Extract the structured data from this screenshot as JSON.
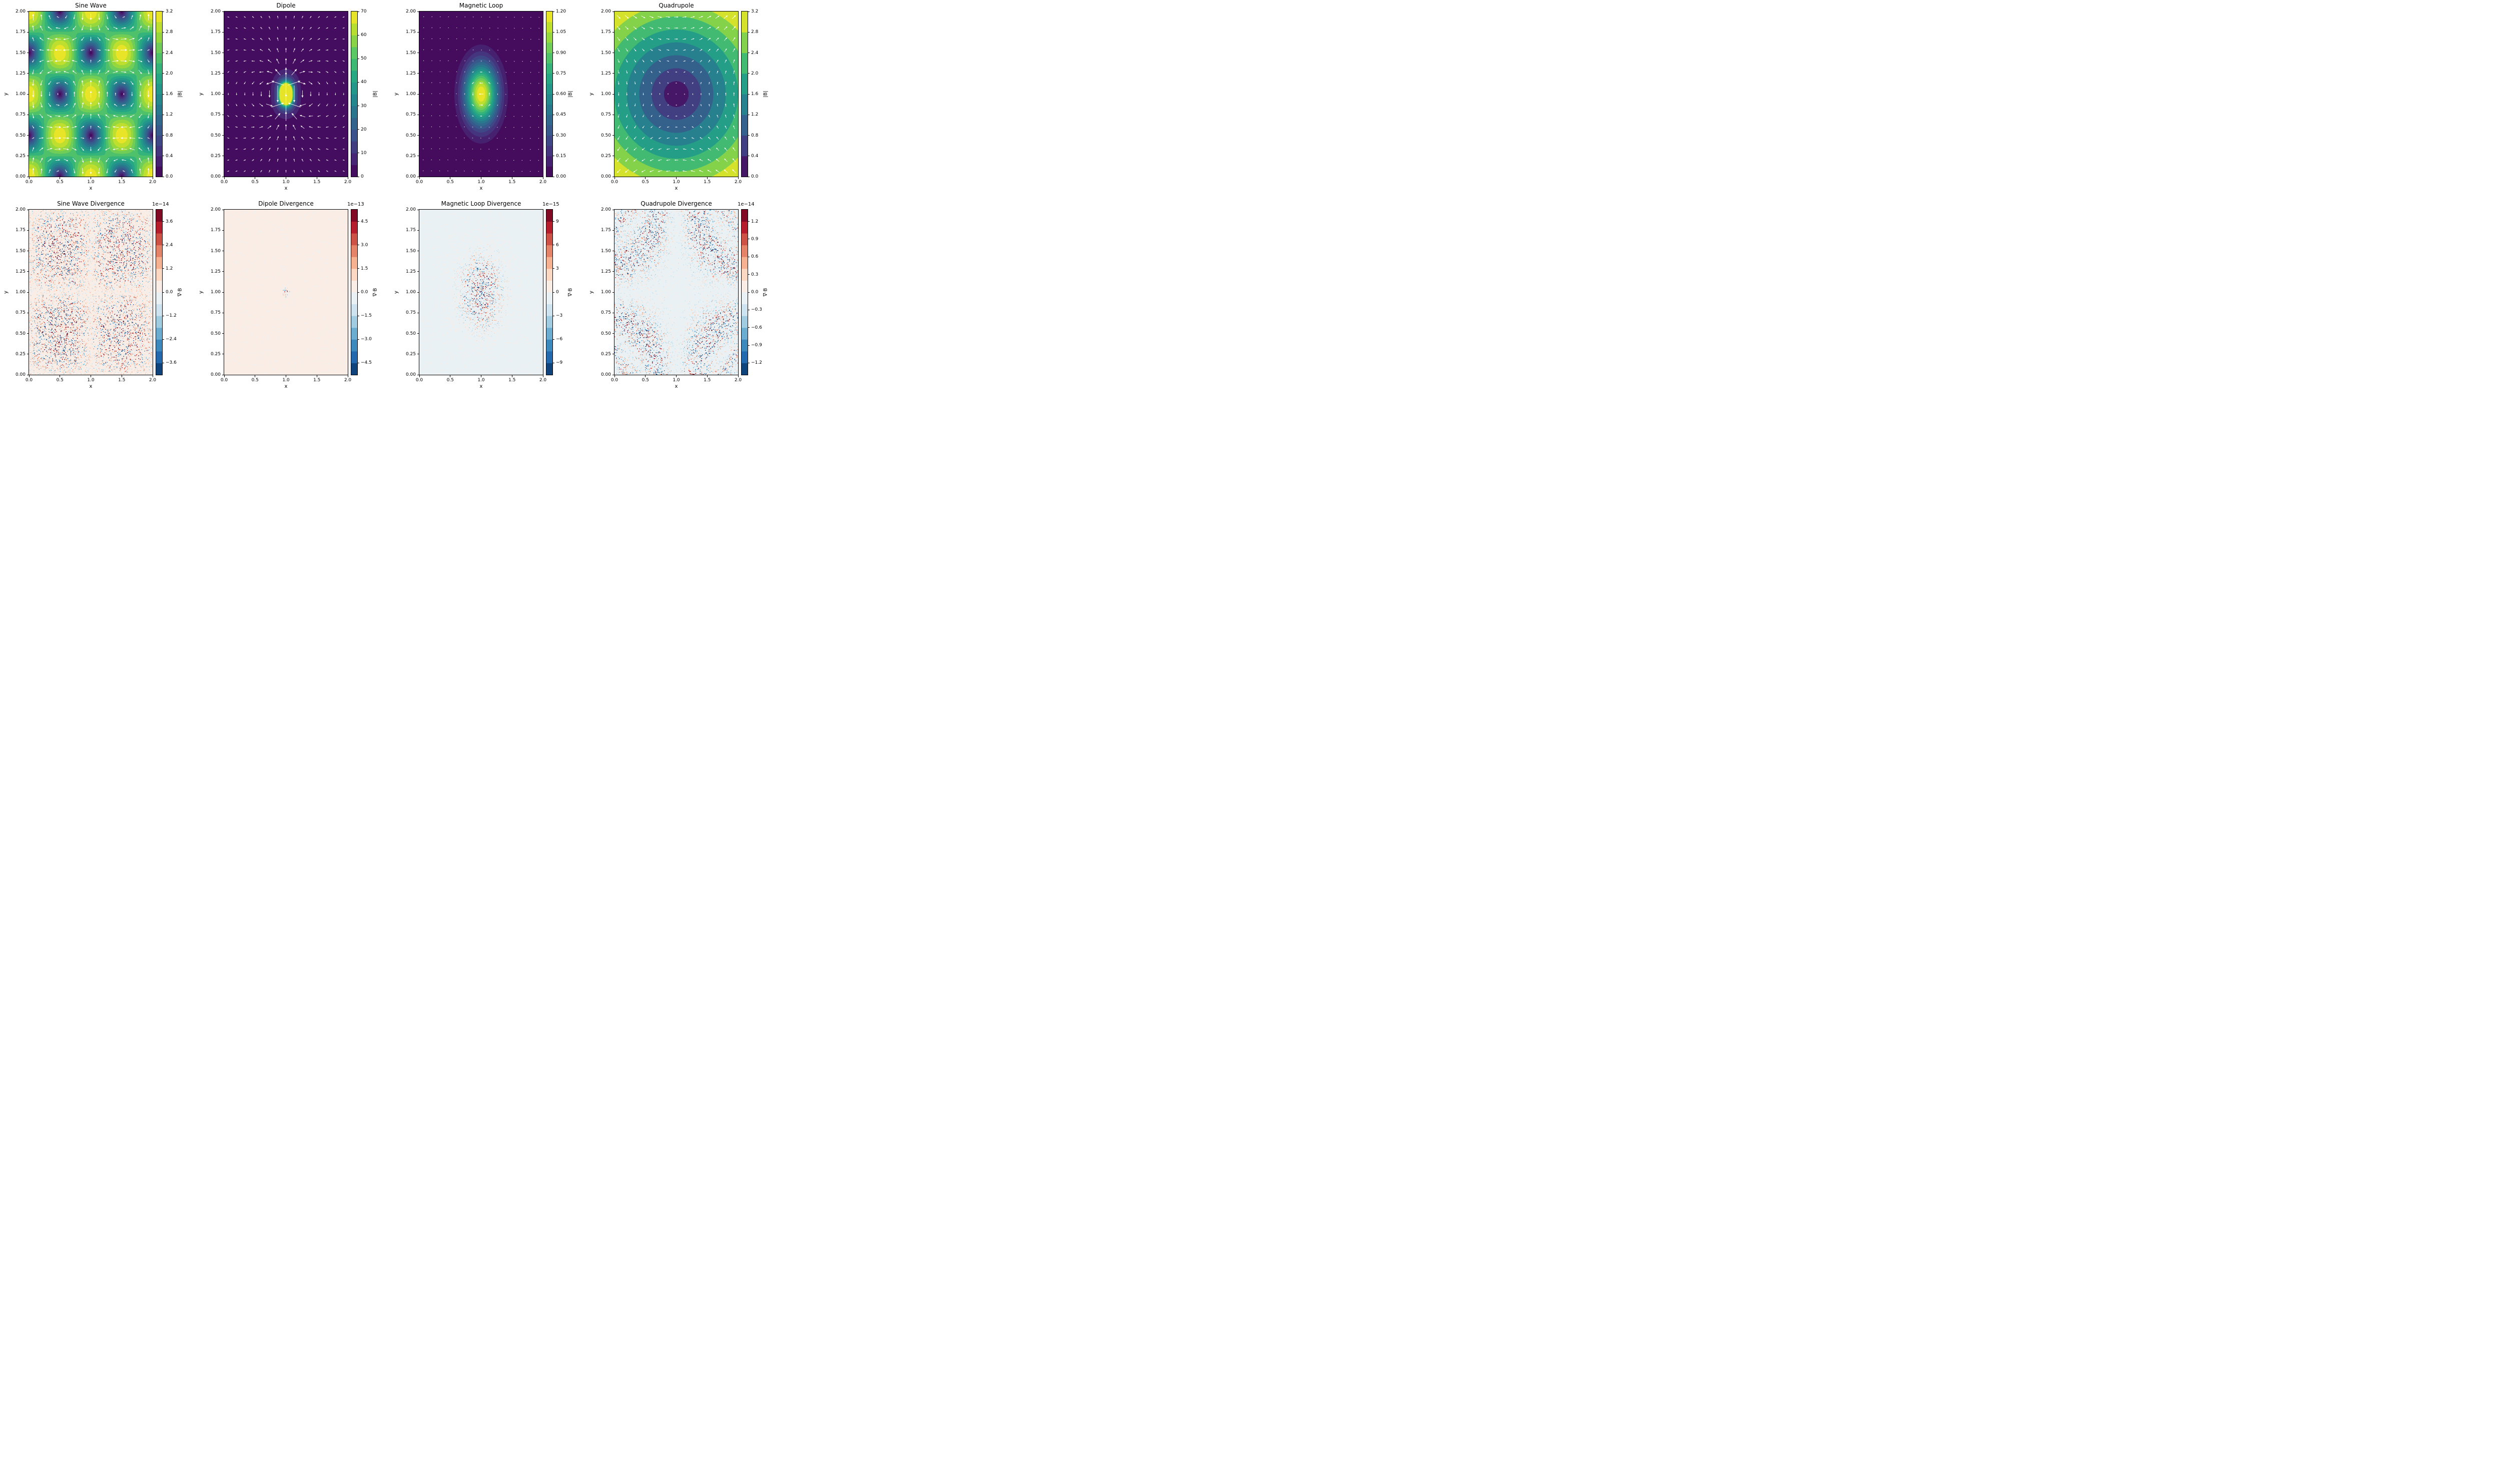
{
  "figure": {
    "background": "#ffffff",
    "text_color": "#000000",
    "arrow_color": "#ffffff"
  },
  "chart_data": {
    "type": "heatmap",
    "description": "2x4 grid of magnetic field magnitude contour maps with quiver arrows (top row, viridis) and their numerical divergence noise maps (bottom row, RdBu_r diverging)",
    "grid": {
      "rows": 2,
      "cols": 4
    },
    "axes": {
      "xlabel": "x",
      "ylabel": "y",
      "x_range": [
        0.0,
        2.0
      ],
      "y_range": [
        0.0,
        2.0
      ],
      "x_tick_values": [
        0.0,
        0.5,
        1.0,
        1.5,
        2.0
      ],
      "x_tick_labels": [
        "0.0",
        "0.5",
        "1.0",
        "1.5",
        "2.0"
      ],
      "y_tick_values": [
        0.0,
        0.25,
        0.5,
        0.75,
        1.0,
        1.25,
        1.5,
        1.75,
        2.0
      ],
      "y_tick_labels": [
        "0.00",
        "0.25",
        "0.50",
        "0.75",
        "1.00",
        "1.25",
        "1.50",
        "1.75",
        "2.00"
      ]
    },
    "colormaps": {
      "viridis": [
        [
          68,
          1,
          84
        ],
        [
          71,
          44,
          122
        ],
        [
          59,
          81,
          139
        ],
        [
          44,
          113,
          142
        ],
        [
          33,
          144,
          141
        ],
        [
          39,
          173,
          129
        ],
        [
          92,
          200,
          99
        ],
        [
          170,
          220,
          50
        ],
        [
          253,
          231,
          37
        ]
      ],
      "rdbu_r": [
        [
          5,
          48,
          97
        ],
        [
          33,
          102,
          172
        ],
        [
          67,
          147,
          195
        ],
        [
          146,
          197,
          222
        ],
        [
          209,
          229,
          240
        ],
        [
          247,
          247,
          247
        ],
        [
          253,
          219,
          199
        ],
        [
          244,
          165,
          130
        ],
        [
          214,
          96,
          77
        ],
        [
          178,
          24,
          43
        ],
        [
          103,
          0,
          31
        ]
      ]
    },
    "panels": [
      {
        "id": "sine-wave",
        "row": 0,
        "col": 0,
        "title": "Sine Wave",
        "kind": "field",
        "field": "sine",
        "colormap": "viridis",
        "vmin": 0,
        "vmax": 3.2,
        "bands": 16,
        "quiver": {
          "grid": 15,
          "base": 3,
          "mult": 11,
          "pow": 1,
          "clip": 3.2
        },
        "colorbar": {
          "label": "|B|",
          "tick_values": [
            0.0,
            0.4,
            0.8,
            1.2,
            1.6,
            2.0,
            2.4,
            2.8,
            3.2
          ],
          "tick_labels": [
            "0.0",
            "0.4",
            "0.8",
            "1.2",
            "1.6",
            "2.0",
            "2.4",
            "2.8",
            "3.2"
          ]
        }
      },
      {
        "id": "dipole",
        "row": 0,
        "col": 1,
        "title": "Dipole",
        "kind": "field",
        "field": "dipole",
        "colormap": "viridis",
        "vmin": 0,
        "vmax": 70,
        "bands": 14,
        "quiver": {
          "grid": 15,
          "base": 2.5,
          "mult": 46,
          "pow": 0.45,
          "clip": 70
        },
        "colorbar": {
          "label": "|B|",
          "tick_values": [
            0,
            10,
            20,
            30,
            40,
            50,
            60,
            70
          ],
          "tick_labels": [
            "0",
            "10",
            "20",
            "30",
            "40",
            "50",
            "60",
            "70"
          ]
        }
      },
      {
        "id": "magnetic-loop",
        "row": 0,
        "col": 2,
        "title": "Magnetic Loop",
        "kind": "field",
        "field": "loop",
        "colormap": "viridis",
        "vmin": 0,
        "vmax": 1.2,
        "bands": 16,
        "quiver": {
          "grid": 15,
          "base": 0.8,
          "mult": 9,
          "pow": 1.5,
          "clip": 1.2
        },
        "colorbar": {
          "label": "|B|",
          "tick_values": [
            0.0,
            0.15,
            0.3,
            0.45,
            0.6,
            0.75,
            0.9,
            1.05,
            1.2
          ],
          "tick_labels": [
            "0.00",
            "0.15",
            "0.30",
            "0.45",
            "0.60",
            "0.75",
            "0.90",
            "1.05",
            "1.20"
          ]
        }
      },
      {
        "id": "quadrupole",
        "row": 0,
        "col": 3,
        "title": "Quadrupole",
        "kind": "field",
        "field": "quad",
        "colormap": "viridis",
        "vmin": 0,
        "vmax": 3.2,
        "bands": 8,
        "quiver": {
          "grid": 15,
          "base": 2,
          "mult": 9,
          "pow": 1,
          "clip": 3.2
        },
        "colorbar": {
          "label": "|B|",
          "tick_values": [
            0.0,
            0.4,
            0.8,
            1.2,
            1.6,
            2.0,
            2.4,
            2.8,
            3.2
          ],
          "tick_labels": [
            "0.0",
            "0.4",
            "0.8",
            "1.2",
            "1.6",
            "2.0",
            "2.4",
            "2.8",
            "3.2"
          ]
        }
      },
      {
        "id": "sine-wave-divergence",
        "row": 1,
        "col": 0,
        "title": "Sine Wave Divergence",
        "kind": "divergence",
        "colormap": "rdbu_r",
        "noise_mask": "periodic",
        "scale_offset": "1e−14",
        "vext": 4.2,
        "bands": 14,
        "bias": 0.012,
        "seed": 11,
        "colorbar": {
          "label": "∇·B",
          "tick_values": [
            3.6,
            2.4,
            1.2,
            0.0,
            -1.2,
            -2.4,
            -3.6
          ],
          "tick_labels": [
            "3.6",
            "2.4",
            "1.2",
            "0.0",
            "−1.2",
            "−2.4",
            "−3.6"
          ]
        }
      },
      {
        "id": "dipole-divergence",
        "row": 1,
        "col": 1,
        "title": "Dipole Divergence",
        "kind": "divergence",
        "colormap": "rdbu_r",
        "noise_mask": "center-dot",
        "scale_offset": "1e−13",
        "vext": 5.25,
        "bands": 14,
        "bias": 0.012,
        "seed": 22,
        "colorbar": {
          "label": "∇·B",
          "tick_values": [
            4.5,
            3.0,
            1.5,
            0.0,
            -1.5,
            -3.0,
            -4.5
          ],
          "tick_labels": [
            "4.5",
            "3.0",
            "1.5",
            "0.0",
            "−1.5",
            "−3.0",
            "−4.5"
          ]
        }
      },
      {
        "id": "magnetic-loop-divergence",
        "row": 1,
        "col": 2,
        "title": "Magnetic Loop Divergence",
        "kind": "divergence",
        "colormap": "rdbu_r",
        "noise_mask": "center-blob",
        "scale_offset": "1e−15",
        "vext": 10.5,
        "bands": 14,
        "bias": -0.012,
        "seed": 33,
        "colorbar": {
          "label": "∇·B",
          "tick_values": [
            9,
            6,
            3,
            0,
            -3,
            -6,
            -9
          ],
          "tick_labels": [
            "9",
            "6",
            "3",
            "0",
            "−3",
            "−6",
            "−9"
          ]
        }
      },
      {
        "id": "quadrupole-divergence",
        "row": 1,
        "col": 3,
        "title": "Quadrupole Divergence",
        "kind": "divergence",
        "colormap": "rdbu_r",
        "noise_mask": "arcs",
        "scale_offset": "1e−14",
        "vext": 1.4,
        "bands": 14,
        "bias": -0.03,
        "seed": 44,
        "colorbar": {
          "label": "∇·B",
          "tick_values": [
            1.2,
            0.9,
            0.6,
            0.3,
            0.0,
            -0.3,
            -0.6,
            -0.9,
            -1.2
          ],
          "tick_labels": [
            "1.2",
            "0.9",
            "0.6",
            "0.3",
            "0.0",
            "−0.3",
            "−0.6",
            "−0.9",
            "−1.2"
          ]
        }
      }
    ]
  }
}
